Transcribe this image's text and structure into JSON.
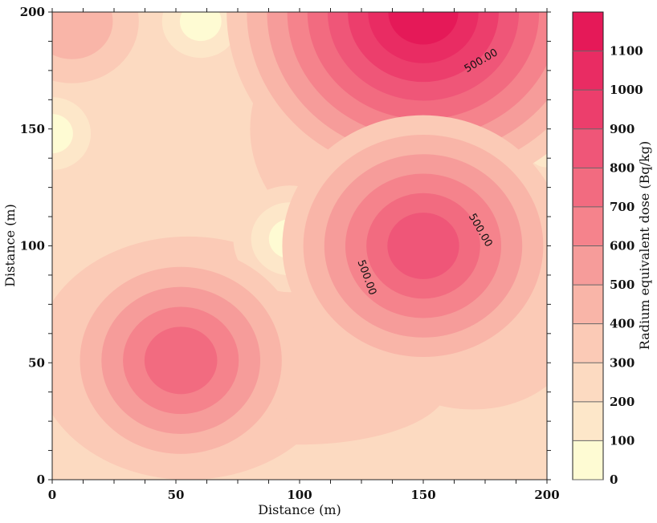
{
  "chart_data": {
    "type": "heatmap",
    "subtype": "filled-contour",
    "xlabel": "Distance (m)",
    "ylabel": "Distance (m)",
    "xlim": [
      0,
      200
    ],
    "ylim": [
      0,
      200
    ],
    "xticks": [
      0,
      50,
      100,
      150,
      200
    ],
    "yticks": [
      0,
      50,
      100,
      150,
      200
    ],
    "colorbar": {
      "label": "Radium equivalent dose (Bq/kg)",
      "levels": [
        0,
        100,
        200,
        300,
        400,
        500,
        600,
        700,
        800,
        900,
        1000,
        1100
      ],
      "max": 1200,
      "colors": [
        "#fefbd3",
        "#fde7c9",
        "#fcdac1",
        "#fbcab6",
        "#f9b5a8",
        "#f69c9a",
        "#f5838c",
        "#f26b80",
        "#ef5678",
        "#ec3e6c",
        "#e92c63",
        "#e51958"
      ]
    },
    "contour_labels": [
      {
        "text": "500.00",
        "x": 174,
        "y": 178,
        "angle": -30
      },
      {
        "text": "500.00",
        "x": 172,
        "y": 106,
        "angle": 60
      },
      {
        "text": "500.00",
        "x": 126,
        "y": 86,
        "angle": 70
      }
    ],
    "hotspots": [
      {
        "x": 150,
        "y": 200,
        "value": 1100
      },
      {
        "x": 150,
        "y": 100,
        "value": 800
      },
      {
        "x": 52,
        "y": 51,
        "value": 700
      },
      {
        "x": 8,
        "y": 196,
        "value": 400
      }
    ],
    "lowspots": [
      {
        "x": 60,
        "y": 196,
        "value": 50
      },
      {
        "x": 96,
        "y": 103,
        "value": 60
      },
      {
        "x": 0,
        "y": 148,
        "value": 80
      },
      {
        "x": 200,
        "y": 142,
        "value": 150
      }
    ]
  }
}
